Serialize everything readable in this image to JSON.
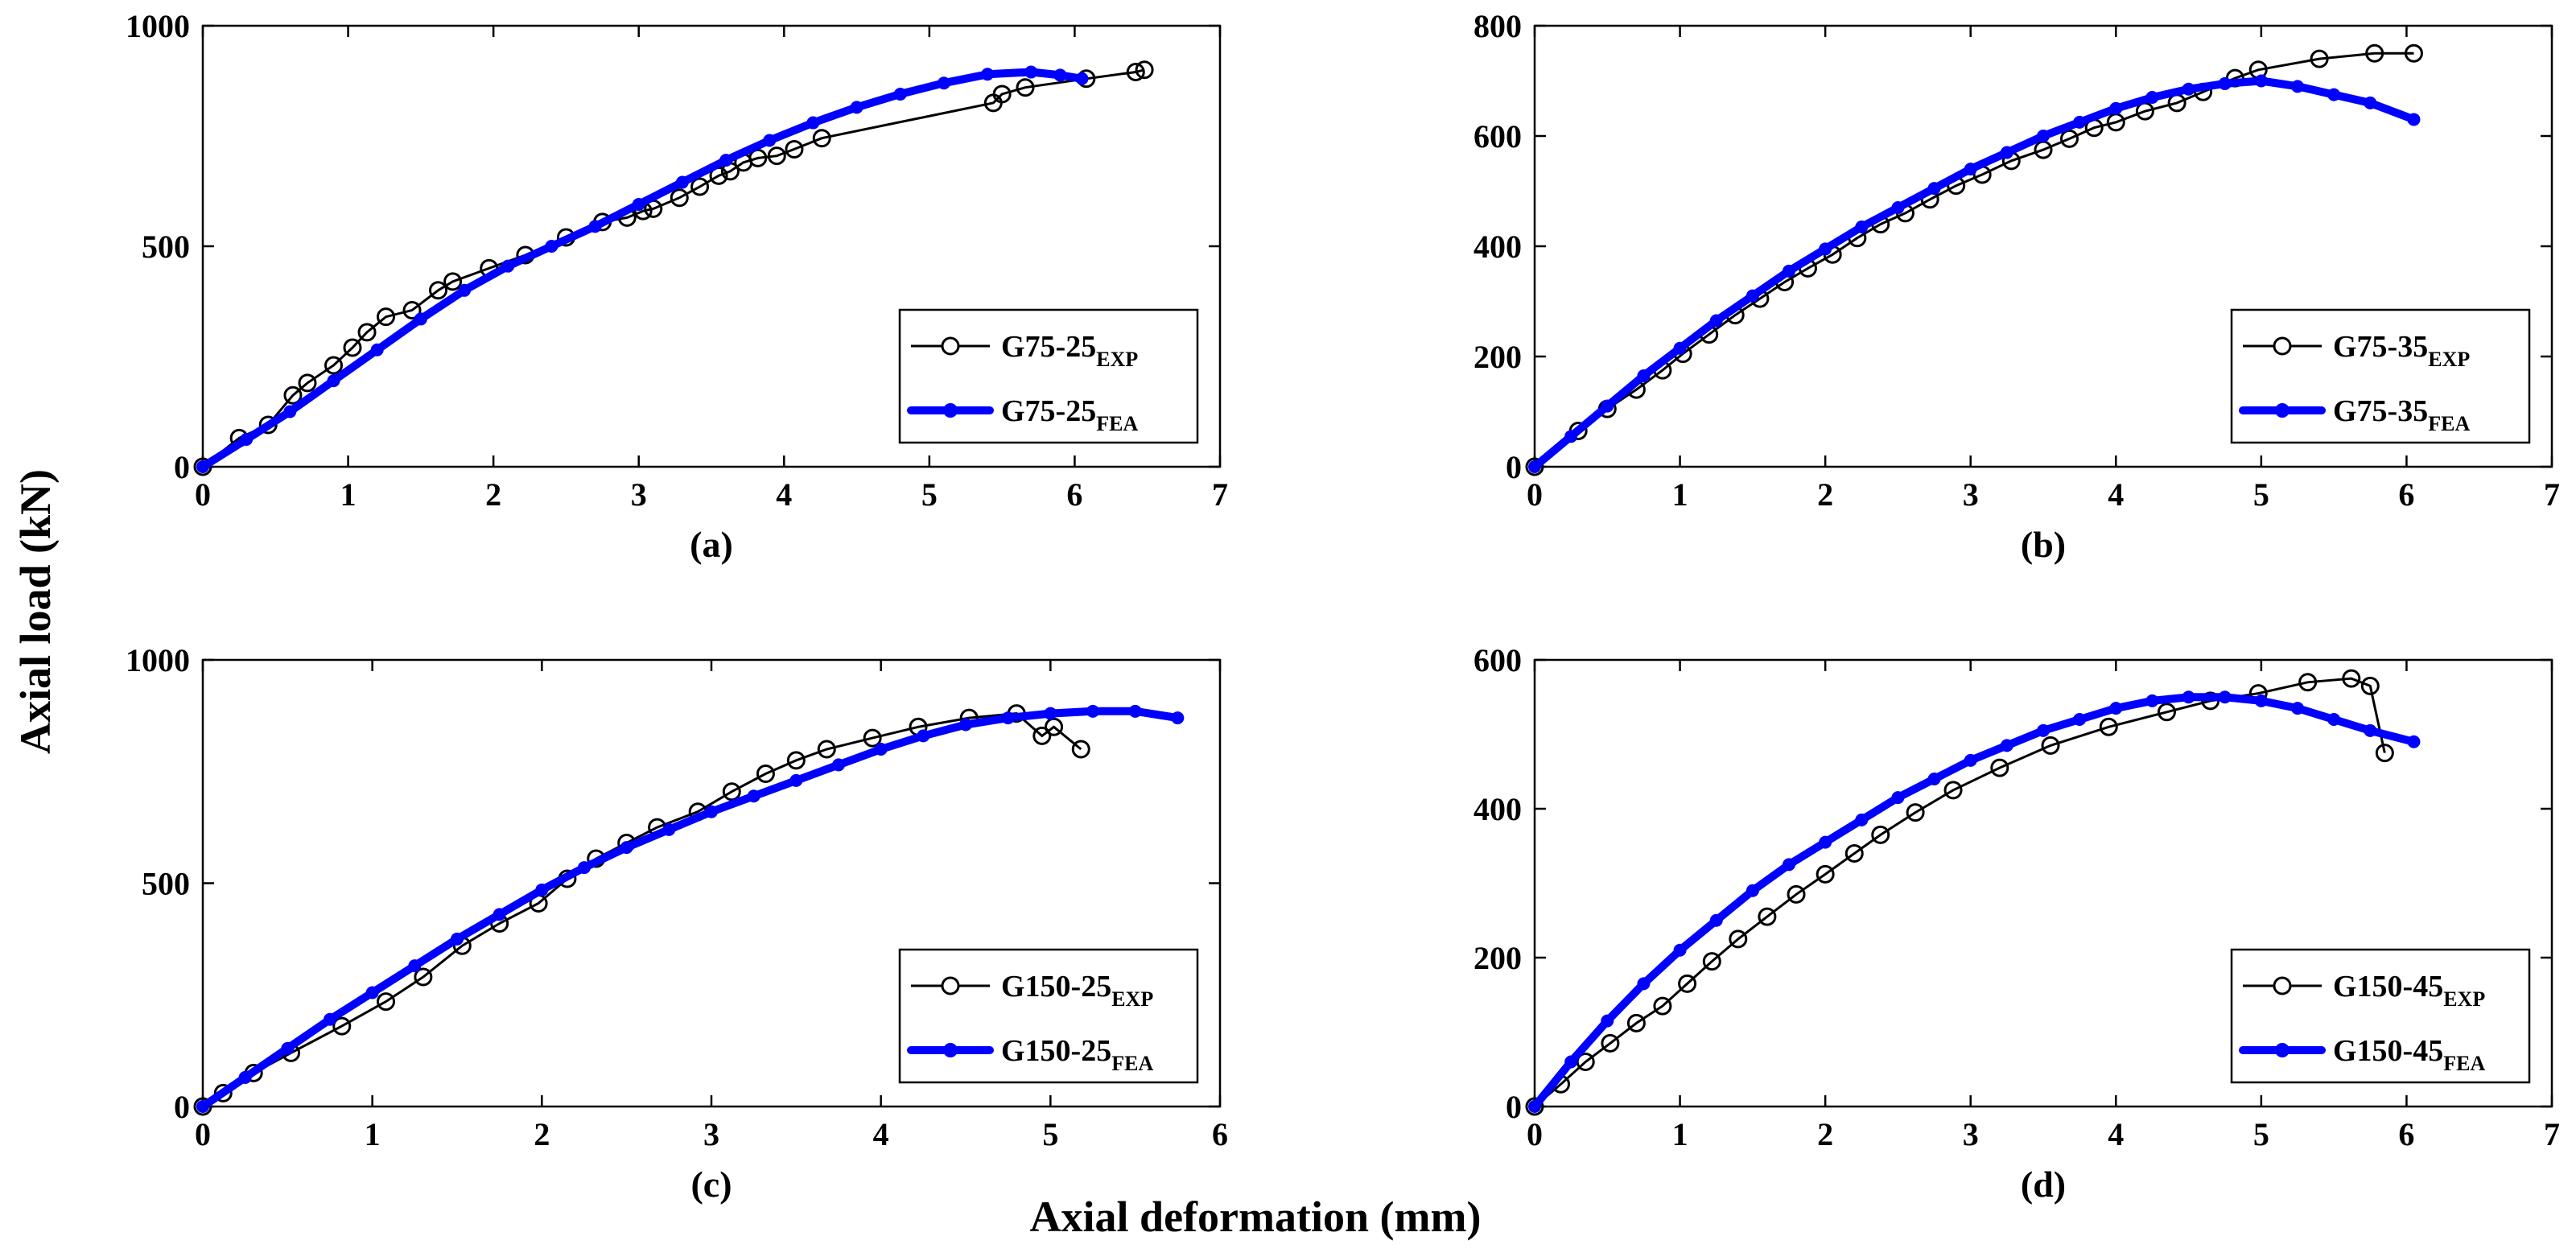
{
  "figure": {
    "ylabel": "Axial load (kN)",
    "xlabel": "Axial deformation (mm)"
  },
  "chart_data": [
    {
      "type": "line",
      "panel_label": "(a)",
      "xlim": [
        0,
        7
      ],
      "ylim": [
        0,
        1000
      ],
      "xticks": [
        0,
        1,
        2,
        3,
        4,
        5,
        6,
        7
      ],
      "yticks": [
        0,
        500,
        1000
      ],
      "legend_position": "bottom-right",
      "series": [
        {
          "name": "G75-25EXP",
          "legend_base": "G75-25",
          "legend_sub": "EXP",
          "style": "exp",
          "color": "#000000",
          "x": [
            0,
            0.25,
            0.45,
            0.62,
            0.72,
            0.9,
            1.03,
            1.13,
            1.26,
            1.44,
            1.62,
            1.72,
            1.97,
            2.22,
            2.5,
            2.75,
            2.92,
            3.03,
            3.1,
            3.28,
            3.42,
            3.55,
            3.63,
            3.72,
            3.82,
            3.95,
            4.07,
            4.26,
            5.44,
            5.5,
            5.66,
            6.08,
            6.42,
            6.48
          ],
          "y": [
            0,
            65,
            95,
            162,
            190,
            230,
            270,
            305,
            340,
            355,
            400,
            420,
            450,
            480,
            520,
            555,
            565,
            580,
            585,
            610,
            635,
            660,
            670,
            690,
            700,
            705,
            720,
            745,
            825,
            845,
            860,
            880,
            895,
            900
          ]
        },
        {
          "name": "G75-25FEA",
          "legend_base": "G75-25",
          "legend_sub": "FEA",
          "style": "fea",
          "color": "#0000ff",
          "x": [
            0,
            0.3,
            0.6,
            0.9,
            1.2,
            1.5,
            1.8,
            2.1,
            2.4,
            2.7,
            3.0,
            3.3,
            3.6,
            3.9,
            4.2,
            4.5,
            4.8,
            5.1,
            5.4,
            5.7,
            5.9,
            6.05
          ],
          "y": [
            0,
            62,
            125,
            195,
            265,
            335,
            400,
            455,
            500,
            545,
            595,
            645,
            695,
            740,
            780,
            815,
            845,
            870,
            890,
            895,
            888,
            880
          ]
        }
      ]
    },
    {
      "type": "line",
      "panel_label": "(b)",
      "xlim": [
        0,
        7
      ],
      "ylim": [
        0,
        800
      ],
      "xticks": [
        0,
        1,
        2,
        3,
        4,
        5,
        6,
        7
      ],
      "yticks": [
        0,
        200,
        400,
        600,
        800
      ],
      "legend_position": "bottom-right",
      "series": [
        {
          "name": "G75-35EXP",
          "legend_base": "G75-35",
          "legend_sub": "EXP",
          "style": "exp",
          "color": "#000000",
          "x": [
            0,
            0.3,
            0.5,
            0.7,
            0.88,
            1.02,
            1.2,
            1.38,
            1.55,
            1.72,
            1.88,
            2.05,
            2.22,
            2.38,
            2.55,
            2.72,
            2.9,
            3.08,
            3.28,
            3.5,
            3.68,
            3.85,
            4.0,
            4.2,
            4.42,
            4.6,
            4.82,
            4.98,
            5.4,
            5.78,
            6.05
          ],
          "y": [
            0,
            65,
            105,
            140,
            175,
            205,
            240,
            275,
            305,
            335,
            360,
            385,
            415,
            440,
            460,
            485,
            510,
            530,
            555,
            575,
            595,
            615,
            625,
            645,
            660,
            680,
            705,
            720,
            740,
            750,
            750
          ]
        },
        {
          "name": "G75-35FEA",
          "legend_base": "G75-35",
          "legend_sub": "FEA",
          "style": "fea",
          "color": "#0000ff",
          "x": [
            0,
            0.25,
            0.5,
            0.75,
            1.0,
            1.25,
            1.5,
            1.75,
            2.0,
            2.25,
            2.5,
            2.75,
            3.0,
            3.25,
            3.5,
            3.75,
            4.0,
            4.25,
            4.5,
            4.75,
            5.0,
            5.25,
            5.5,
            5.75,
            6.05
          ],
          "y": [
            0,
            55,
            110,
            165,
            215,
            265,
            310,
            355,
            395,
            435,
            470,
            505,
            540,
            570,
            600,
            625,
            650,
            670,
            685,
            695,
            700,
            690,
            675,
            660,
            630
          ]
        }
      ]
    },
    {
      "type": "line",
      "panel_label": "(c)",
      "xlim": [
        0,
        6
      ],
      "ylim": [
        0,
        1000
      ],
      "xticks": [
        0,
        1,
        2,
        3,
        4,
        5,
        6
      ],
      "yticks": [
        0,
        500,
        1000
      ],
      "legend_position": "bottom-right",
      "series": [
        {
          "name": "G150-25EXP",
          "legend_base": "G150-25",
          "legend_sub": "EXP",
          "style": "exp",
          "color": "#000000",
          "x": [
            0,
            0.12,
            0.3,
            0.52,
            0.82,
            1.08,
            1.3,
            1.53,
            1.75,
            1.98,
            2.15,
            2.32,
            2.5,
            2.68,
            2.92,
            3.12,
            3.32,
            3.5,
            3.68,
            3.95,
            4.22,
            4.52,
            4.8,
            4.95,
            5.02,
            5.18
          ],
          "y": [
            0,
            30,
            75,
            120,
            180,
            235,
            290,
            360,
            410,
            455,
            510,
            555,
            590,
            625,
            660,
            705,
            745,
            775,
            800,
            825,
            850,
            870,
            880,
            830,
            850,
            800
          ]
        },
        {
          "name": "G150-25FEA",
          "legend_base": "G150-25",
          "legend_sub": "FEA",
          "style": "fea",
          "color": "#0000ff",
          "x": [
            0,
            0.25,
            0.5,
            0.75,
            1.0,
            1.25,
            1.5,
            1.75,
            2.0,
            2.25,
            2.5,
            2.75,
            3.0,
            3.25,
            3.5,
            3.75,
            4.0,
            4.25,
            4.5,
            4.75,
            5.0,
            5.25,
            5.5,
            5.75
          ],
          "y": [
            0,
            65,
            130,
            195,
            255,
            315,
            375,
            430,
            485,
            535,
            580,
            620,
            660,
            695,
            730,
            765,
            800,
            830,
            855,
            870,
            880,
            885,
            885,
            870
          ]
        }
      ]
    },
    {
      "type": "line",
      "panel_label": "(d)",
      "xlim": [
        0,
        7
      ],
      "ylim": [
        0,
        600
      ],
      "xticks": [
        0,
        1,
        2,
        3,
        4,
        5,
        6,
        7
      ],
      "yticks": [
        0,
        200,
        400,
        600
      ],
      "legend_position": "bottom-right",
      "series": [
        {
          "name": "G150-45EXP",
          "legend_base": "G150-45",
          "legend_sub": "EXP",
          "style": "exp",
          "color": "#000000",
          "x": [
            0,
            0.18,
            0.35,
            0.52,
            0.7,
            0.88,
            1.05,
            1.22,
            1.4,
            1.6,
            1.8,
            2.0,
            2.2,
            2.38,
            2.62,
            2.88,
            3.2,
            3.55,
            3.95,
            4.35,
            4.65,
            4.98,
            5.32,
            5.62,
            5.75,
            5.85
          ],
          "y": [
            0,
            30,
            60,
            85,
            112,
            135,
            165,
            195,
            225,
            255,
            285,
            312,
            340,
            365,
            395,
            425,
            455,
            485,
            510,
            530,
            545,
            555,
            570,
            575,
            565,
            475
          ]
        },
        {
          "name": "G150-45FEA",
          "legend_base": "G150-45",
          "legend_sub": "FEA",
          "style": "fea",
          "color": "#0000ff",
          "x": [
            0,
            0.25,
            0.5,
            0.75,
            1.0,
            1.25,
            1.5,
            1.75,
            2.0,
            2.25,
            2.5,
            2.75,
            3.0,
            3.25,
            3.5,
            3.75,
            4.0,
            4.25,
            4.5,
            4.75,
            5.0,
            5.25,
            5.5,
            5.75,
            6.05
          ],
          "y": [
            0,
            60,
            115,
            165,
            210,
            250,
            290,
            325,
            355,
            385,
            415,
            440,
            465,
            485,
            505,
            520,
            535,
            545,
            550,
            550,
            545,
            535,
            520,
            505,
            490
          ]
        }
      ]
    }
  ]
}
